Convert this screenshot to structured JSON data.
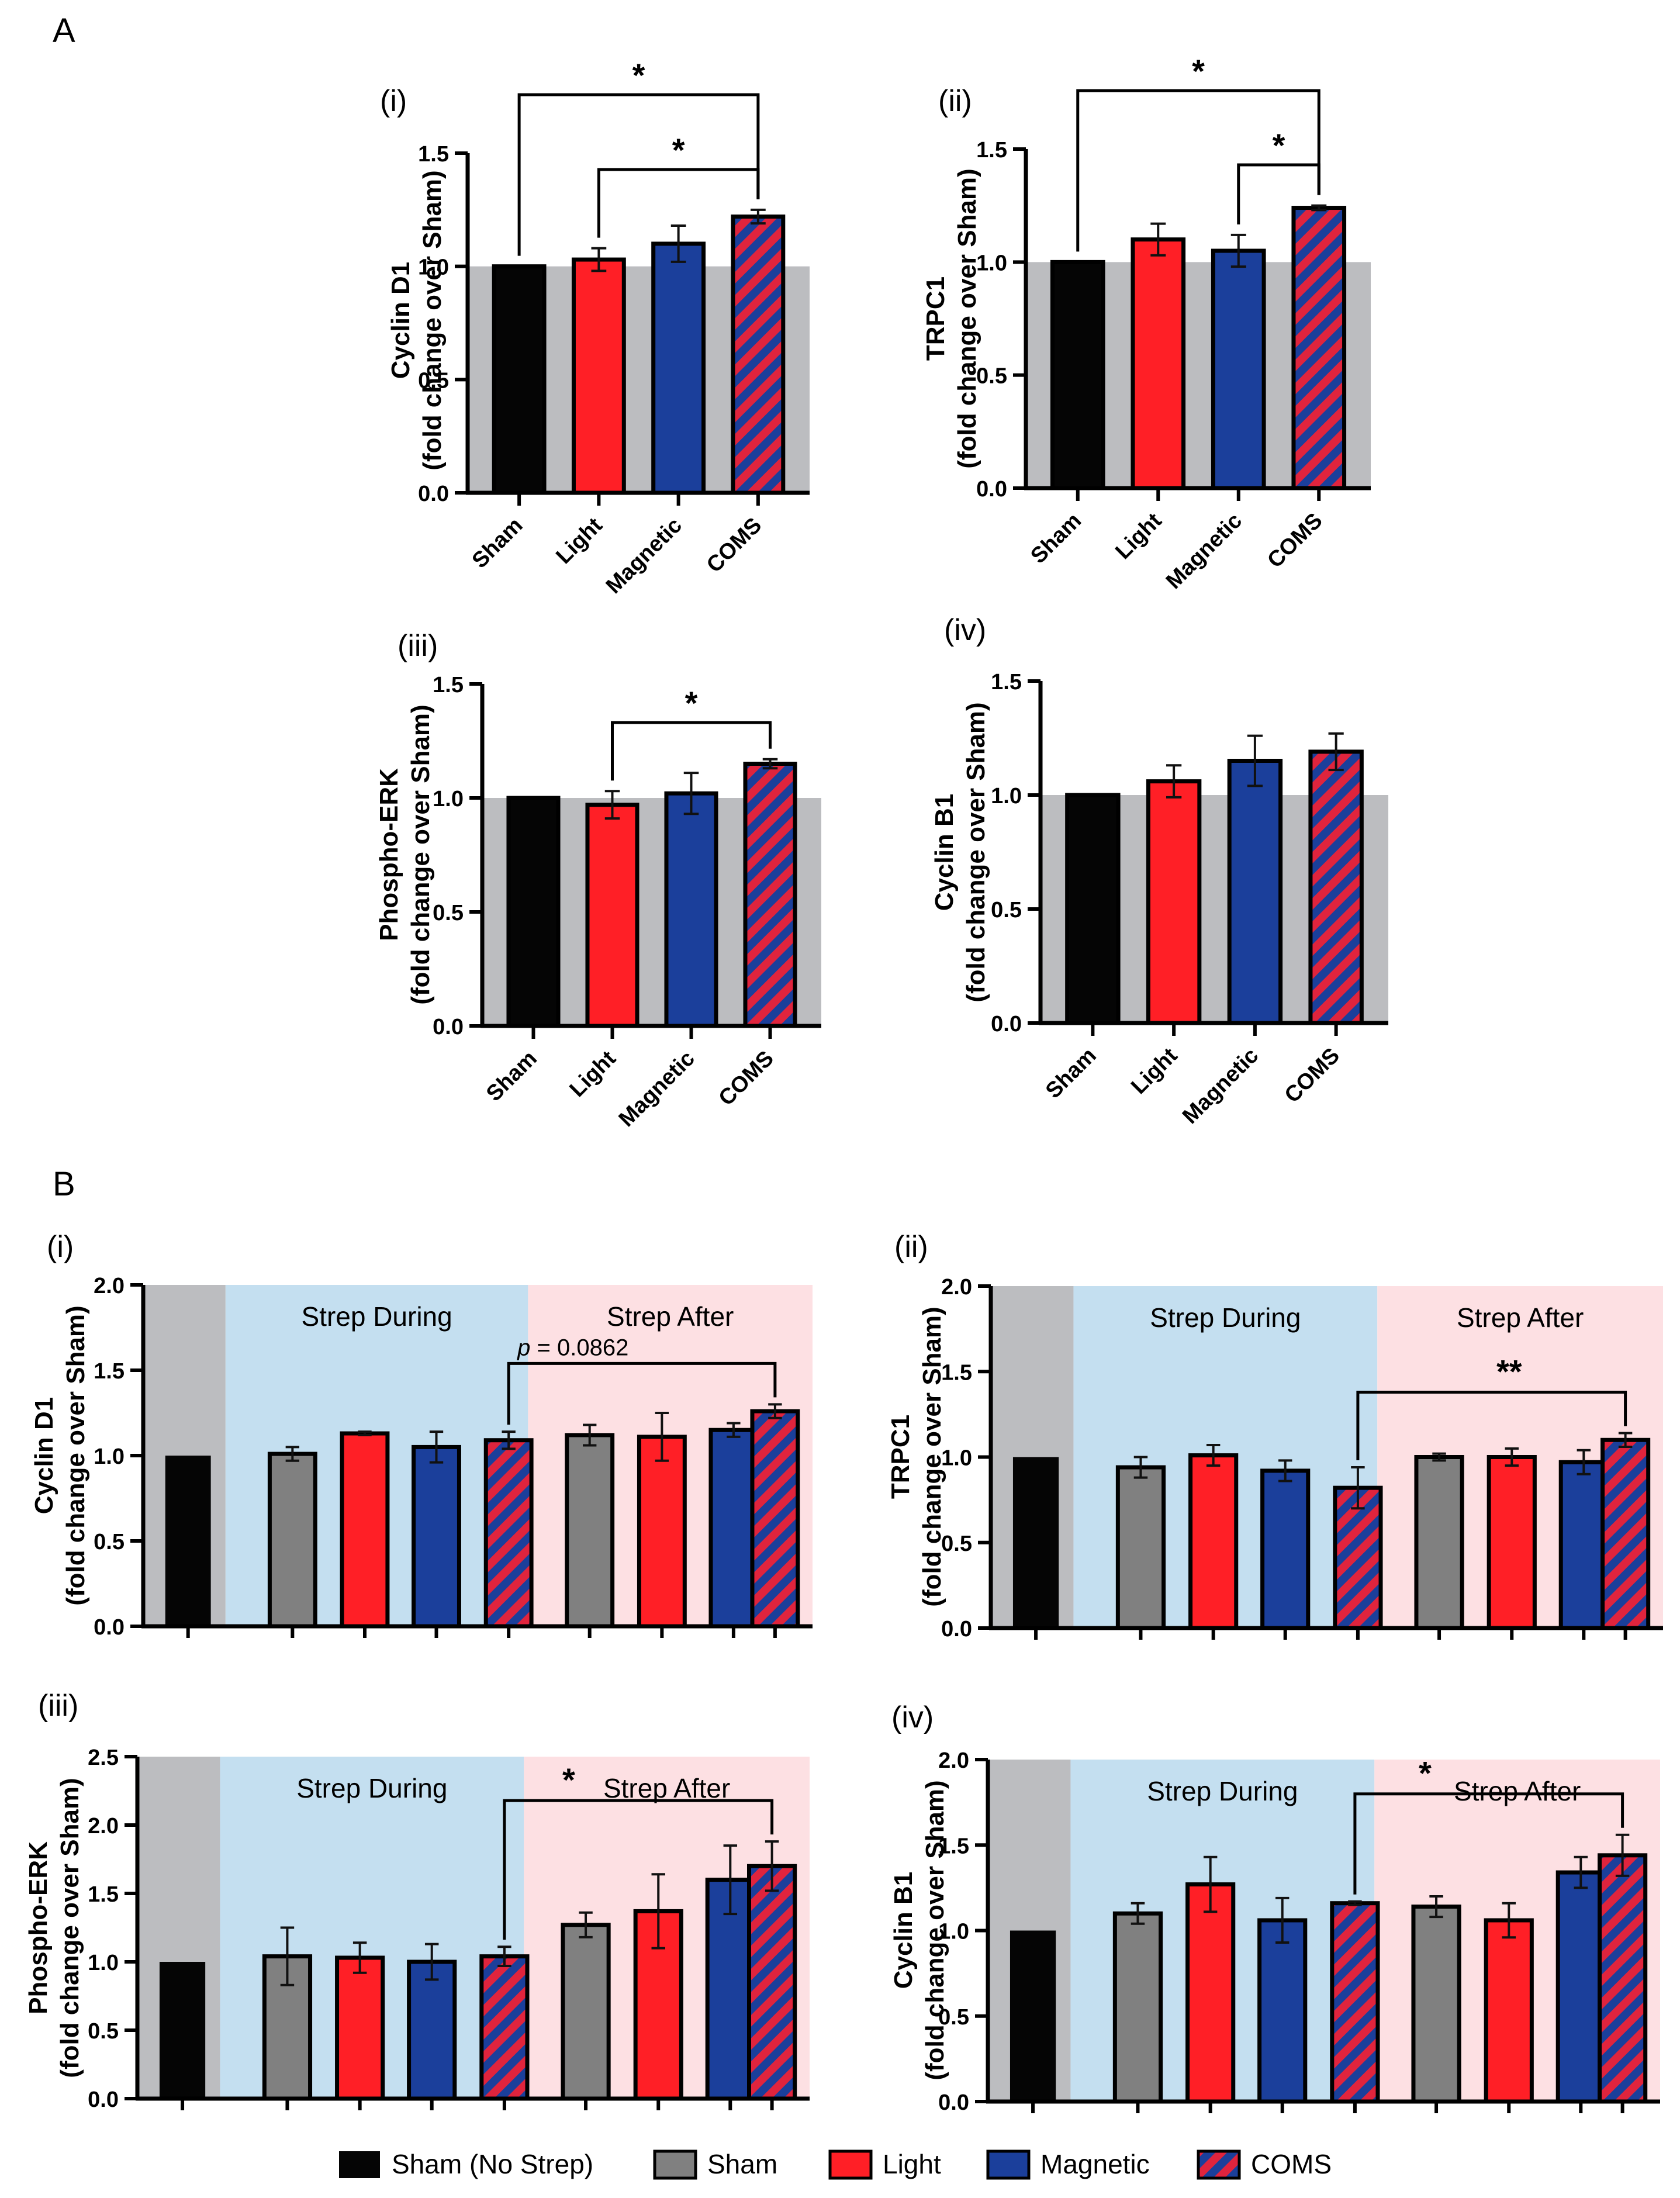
{
  "panels": {
    "A": "A",
    "B": "B"
  },
  "colors": {
    "sham_no_strep": "#050505",
    "sham": "#808080",
    "light": "#ff1f26",
    "magnetic": "#1b3f9b",
    "coms_stripe_a": "#1b3f9b",
    "coms_stripe_b": "#e0243d",
    "background_gray": "#bcbdc0",
    "strep_during_bg": "#c4dff0",
    "strep_after_bg": "#fde0e3"
  },
  "legend": {
    "items": [
      {
        "label": "Sham (No Strep)",
        "key": "sham_no_strep"
      },
      {
        "label": "Sham",
        "key": "sham"
      },
      {
        "label": "Light",
        "key": "light"
      },
      {
        "label": "Magnetic",
        "key": "magnetic"
      },
      {
        "label": "COMS",
        "key": "coms"
      }
    ]
  },
  "chart_data": [
    {
      "id": "A-i",
      "panel_label": "(i)",
      "type": "bar",
      "ylabel": [
        "Cyclin D1",
        "(fold change over Sham)"
      ],
      "ylim": [
        0,
        1.5
      ],
      "yticks": [
        "0.0",
        "0.5",
        "1.0",
        "1.5"
      ],
      "categories": [
        "Sham",
        "Light",
        "Magnetic",
        "COMS"
      ],
      "values": [
        1.0,
        1.03,
        1.1,
        1.22
      ],
      "errors": [
        0,
        0.05,
        0.08,
        0.03
      ],
      "annotations": [
        {
          "from": 0,
          "to": 3,
          "text": "*"
        },
        {
          "from": 1,
          "to": 3,
          "text": "*"
        }
      ]
    },
    {
      "id": "A-ii",
      "panel_label": "(ii)",
      "type": "bar",
      "ylabel": [
        "TRPC1",
        "(fold change over Sham)"
      ],
      "ylim": [
        0,
        1.5
      ],
      "yticks": [
        "0.0",
        "0.5",
        "1.0",
        "1.5"
      ],
      "categories": [
        "Sham",
        "Light",
        "Magnetic",
        "COMS"
      ],
      "values": [
        1.0,
        1.1,
        1.05,
        1.24
      ],
      "errors": [
        0,
        0.07,
        0.07,
        0.01
      ],
      "annotations": [
        {
          "from": 0,
          "to": 3,
          "text": "*"
        },
        {
          "from": 2,
          "to": 3,
          "text": "*"
        }
      ]
    },
    {
      "id": "A-iii",
      "panel_label": "(iii)",
      "type": "bar",
      "ylabel": [
        "Phospho-ERK",
        "(fold change over Sham)"
      ],
      "ylim": [
        0,
        1.5
      ],
      "yticks": [
        "0.0",
        "0.5",
        "1.0",
        "1.5"
      ],
      "categories": [
        "Sham",
        "Light",
        "Magnetic",
        "COMS"
      ],
      "values": [
        1.0,
        0.97,
        1.02,
        1.15
      ],
      "errors": [
        0,
        0.06,
        0.09,
        0.02
      ],
      "annotations": [
        {
          "from": 1,
          "to": 3,
          "text": "*"
        }
      ]
    },
    {
      "id": "A-iv",
      "panel_label": "(iv)",
      "type": "bar",
      "ylabel": [
        "Cyclin B1",
        "(fold change over Sham)"
      ],
      "ylim": [
        0,
        1.5
      ],
      "yticks": [
        "0.0",
        "0.5",
        "1.0",
        "1.5"
      ],
      "categories": [
        "Sham",
        "Light",
        "Magnetic",
        "COMS"
      ],
      "values": [
        1.0,
        1.06,
        1.15,
        1.19
      ],
      "errors": [
        0,
        0.07,
        0.11,
        0.08
      ],
      "annotations": []
    },
    {
      "id": "B-i",
      "panel_label": "(i)",
      "type": "bar",
      "ylabel": [
        "Cyclin D1",
        "(fold change over Sham)"
      ],
      "ylim": [
        0,
        2.0
      ],
      "yticks": [
        "0.0",
        "0.5",
        "1.0",
        "1.5",
        "2.0"
      ],
      "region_labels": [
        "Strep During",
        "Strep After"
      ],
      "groups": [
        "sham_no_strep",
        "sham",
        "light",
        "magnetic",
        "coms",
        "sham",
        "light",
        "magnetic",
        "coms"
      ],
      "values": [
        1.0,
        1.01,
        1.13,
        1.05,
        1.09,
        1.12,
        1.11,
        1.15,
        1.26
      ],
      "errors": [
        0,
        0.04,
        0.01,
        0.09,
        0.05,
        0.06,
        0.14,
        0.04,
        0.04
      ],
      "annotations": [
        {
          "from": 4,
          "to": 8,
          "prefix": "p",
          "text": " = 0.0862"
        }
      ]
    },
    {
      "id": "B-ii",
      "panel_label": "(ii)",
      "type": "bar",
      "ylabel": [
        "TRPC1",
        "(fold change over Sham)"
      ],
      "ylim": [
        0,
        2.0
      ],
      "yticks": [
        "0.0",
        "0.5",
        "1.0",
        "1.5",
        "2.0"
      ],
      "region_labels": [
        "Strep During",
        "Strep After"
      ],
      "groups": [
        "sham_no_strep",
        "sham",
        "light",
        "magnetic",
        "coms",
        "sham",
        "light",
        "magnetic",
        "coms"
      ],
      "values": [
        1.0,
        0.94,
        1.01,
        0.92,
        0.82,
        1.0,
        1.0,
        0.97,
        1.1
      ],
      "errors": [
        0,
        0.06,
        0.06,
        0.06,
        0.12,
        0.02,
        0.05,
        0.07,
        0.04
      ],
      "annotations": [
        {
          "from": 4,
          "to": 8,
          "text": "**"
        }
      ]
    },
    {
      "id": "B-iii",
      "panel_label": "(iii)",
      "type": "bar",
      "ylabel": [
        "Phospho-ERK",
        "(fold change over Sham)"
      ],
      "ylim": [
        0,
        2.5
      ],
      "yticks": [
        "0.0",
        "0.5",
        "1.0",
        "1.5",
        "2.0",
        "2.5"
      ],
      "region_labels": [
        "Strep During",
        "Strep After"
      ],
      "groups": [
        "sham_no_strep",
        "sham",
        "light",
        "magnetic",
        "coms",
        "sham",
        "light",
        "magnetic",
        "coms"
      ],
      "values": [
        1.0,
        1.04,
        1.03,
        1.0,
        1.04,
        1.27,
        1.37,
        1.6,
        1.7
      ],
      "errors": [
        0,
        0.21,
        0.11,
        0.13,
        0.07,
        0.09,
        0.27,
        0.25,
        0.18
      ],
      "annotations": [
        {
          "from": 4,
          "to": 8,
          "text": "*"
        }
      ]
    },
    {
      "id": "B-iv",
      "panel_label": "(iv)",
      "type": "bar",
      "ylabel": [
        "Cyclin B1",
        "(fold change over Sham)"
      ],
      "ylim": [
        0,
        2.0
      ],
      "yticks": [
        "0.0",
        "0.5",
        "1.0",
        "1.5",
        "2.0"
      ],
      "region_labels": [
        "Strep During",
        "Strep After"
      ],
      "groups": [
        "sham_no_strep",
        "sham",
        "light",
        "magnetic",
        "coms",
        "sham",
        "light",
        "magnetic",
        "coms"
      ],
      "values": [
        1.0,
        1.1,
        1.27,
        1.06,
        1.16,
        1.14,
        1.06,
        1.34,
        1.44
      ],
      "errors": [
        0,
        0.06,
        0.16,
        0.13,
        0.01,
        0.06,
        0.1,
        0.09,
        0.12
      ],
      "annotations": [
        {
          "from": 4,
          "to": 8,
          "text": "*"
        }
      ]
    }
  ]
}
